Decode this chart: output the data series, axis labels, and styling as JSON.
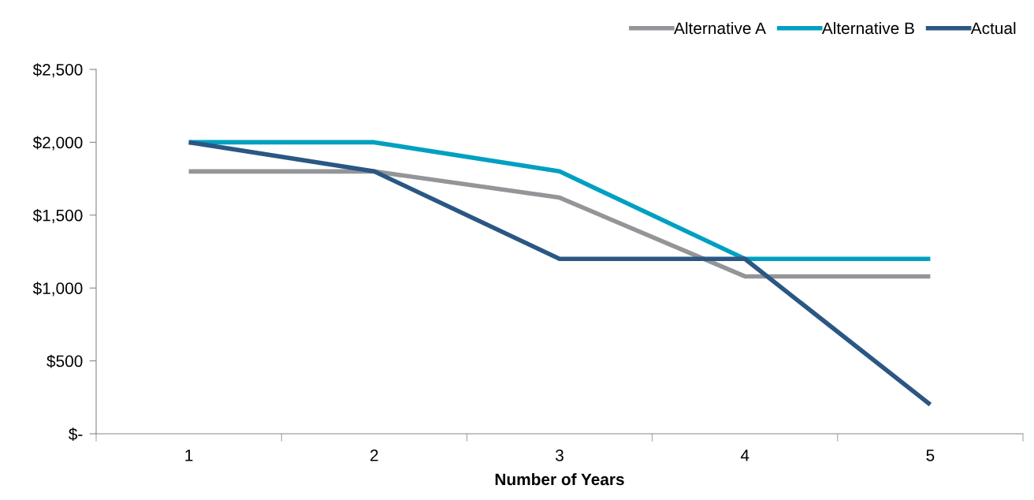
{
  "chart_data": {
    "type": "line",
    "xlabel": "Number of Years",
    "categories": [
      "1",
      "2",
      "3",
      "4",
      "5"
    ],
    "series": [
      {
        "name": "Alternative A",
        "color": "#939598",
        "values": [
          1800,
          1800,
          1620,
          1080,
          1080
        ]
      },
      {
        "name": "Alternative B",
        "color": "#00a0c0",
        "values": [
          2000,
          2000,
          1800,
          1200,
          1200
        ]
      },
      {
        "name": "Actual",
        "color": "#2a5783",
        "values": [
          2000,
          1800,
          1200,
          1200,
          200
        ]
      }
    ],
    "ylim": [
      0,
      2500
    ],
    "yticks": [
      {
        "value": 0,
        "label": "$-"
      },
      {
        "value": 500,
        "label": "$500"
      },
      {
        "value": 1000,
        "label": "$1,000"
      },
      {
        "value": 1500,
        "label": "$1,500"
      },
      {
        "value": 2000,
        "label": "$2,000"
      },
      {
        "value": 2500,
        "label": "$2,500"
      }
    ],
    "grid": false,
    "legend": "top right",
    "marker": "none",
    "line_style": "solid"
  }
}
